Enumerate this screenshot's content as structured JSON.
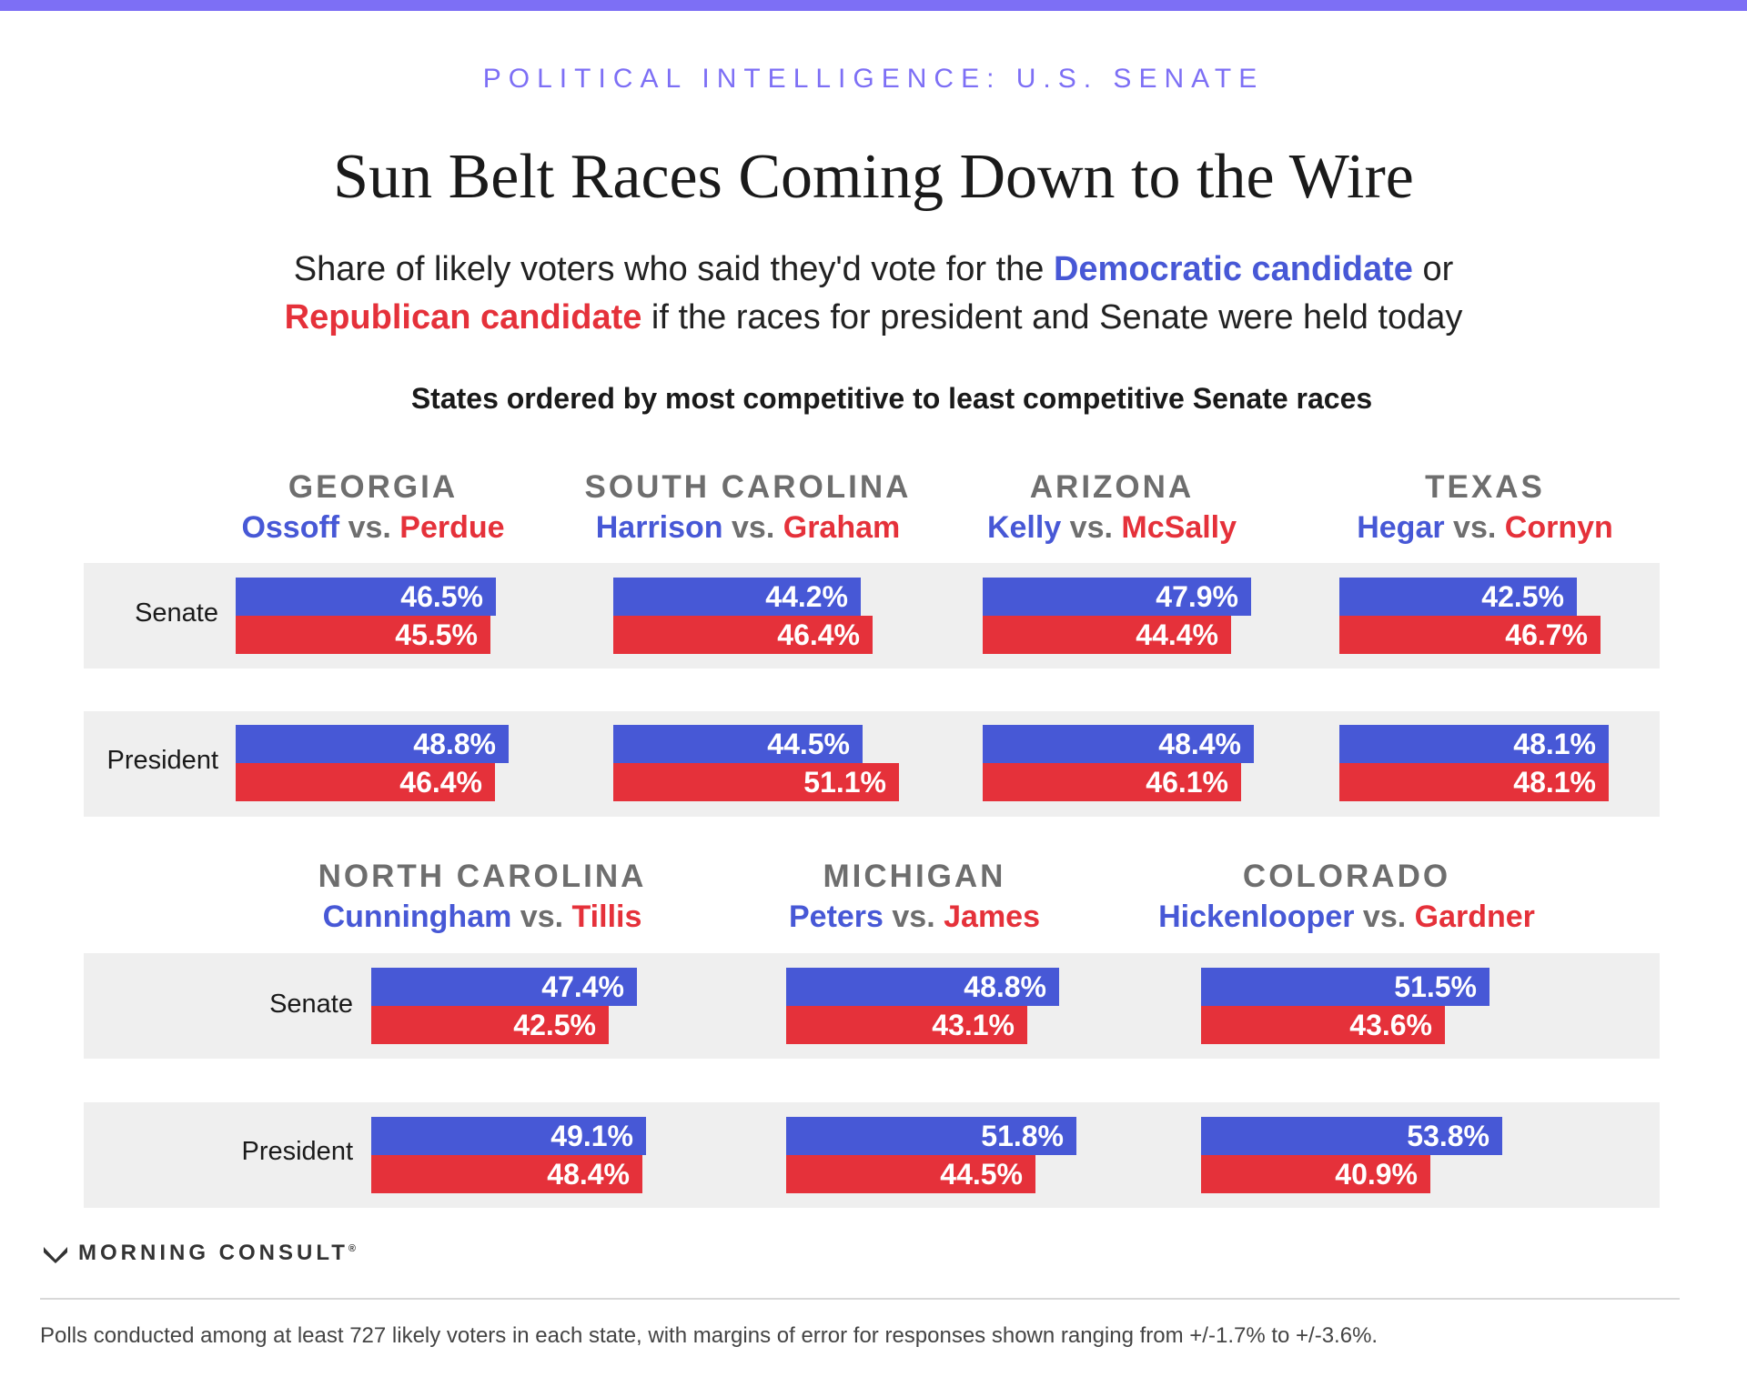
{
  "header": {
    "eyebrow": "POLITICAL INTELLIGENCE: U.S. SENATE",
    "title": "Sun Belt Races Coming Down to the Wire",
    "subtitle_a": "Share of likely voters who said they'd vote for the ",
    "subtitle_dem": "Democratic candidate",
    "subtitle_b": " or",
    "subtitle_rep": "Republican candidate",
    "subtitle_c": " if the races for president and Senate were held today",
    "order_note": "States ordered by most competitive to least competitive Senate races"
  },
  "colors": {
    "accent": "#7d6ff5",
    "democratic": "#4758d6",
    "republican": "#e5313a",
    "band": "#efefef"
  },
  "row_labels": {
    "senate": "Senate",
    "president": "President"
  },
  "vs": "vs.",
  "chart_data": {
    "type": "bar",
    "title": "Sun Belt Races Coming Down to the Wire",
    "unit": "%",
    "states": [
      {
        "state": "GEORGIA",
        "dem": "Ossoff",
        "rep": "Perdue",
        "senate": {
          "dem": 46.5,
          "rep": 45.5
        },
        "president": {
          "dem": 48.8,
          "rep": 46.4
        }
      },
      {
        "state": "SOUTH CAROLINA",
        "dem": "Harrison",
        "rep": "Graham",
        "senate": {
          "dem": 44.2,
          "rep": 46.4
        },
        "president": {
          "dem": 44.5,
          "rep": 51.1
        }
      },
      {
        "state": "ARIZONA",
        "dem": "Kelly",
        "rep": "McSally",
        "senate": {
          "dem": 47.9,
          "rep": 44.4
        },
        "president": {
          "dem": 48.4,
          "rep": 46.1
        }
      },
      {
        "state": "TEXAS",
        "dem": "Hegar",
        "rep": "Cornyn",
        "senate": {
          "dem": 42.5,
          "rep": 46.7
        },
        "president": {
          "dem": 48.1,
          "rep": 48.1
        }
      },
      {
        "state": "NORTH CAROLINA",
        "dem": "Cunningham",
        "rep": "Tillis",
        "senate": {
          "dem": 47.4,
          "rep": 42.5
        },
        "president": {
          "dem": 49.1,
          "rep": 48.4
        }
      },
      {
        "state": "MICHIGAN",
        "dem": "Peters",
        "rep": "James",
        "senate": {
          "dem": 48.8,
          "rep": 43.1
        },
        "president": {
          "dem": 51.8,
          "rep": 44.5
        }
      },
      {
        "state": "COLORADO",
        "dem": "Hickenlooper",
        "rep": "Gardner",
        "senate": {
          "dem": 51.5,
          "rep": 43.6
        },
        "president": {
          "dem": 53.8,
          "rep": 40.9
        }
      }
    ]
  },
  "brand": {
    "name": "MORNING CONSULT",
    "mark": "®"
  },
  "footnote": "Polls conducted among at least 727 likely voters in each state, with margins of error for responses shown ranging from +/-1.7% to +/-3.6%."
}
